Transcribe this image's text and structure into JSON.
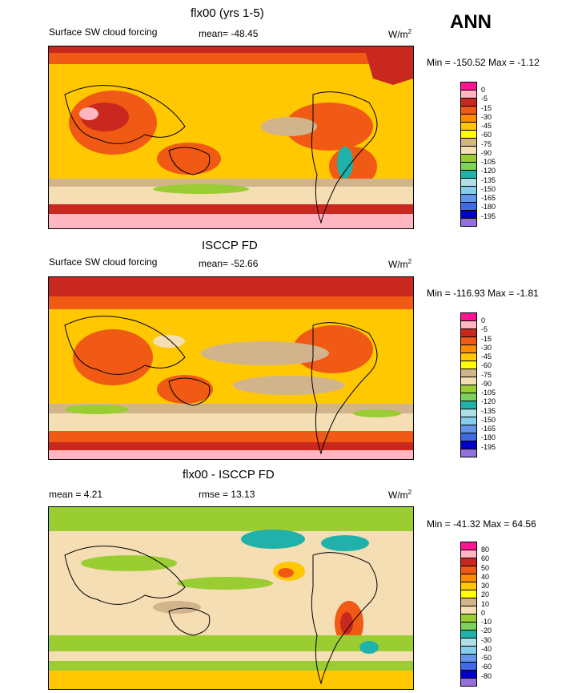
{
  "season": "ANN",
  "panels": [
    {
      "title": "flx00 (yrs 1-5)",
      "left_label": "Surface SW cloud forcing",
      "mid_label": "mean= -48.45",
      "units": "W/m",
      "units_sup": "2",
      "minmax": "Min = -150.52 Max =  -1.12"
    },
    {
      "title": "ISCCP FD",
      "left_label": "Surface SW cloud forcing",
      "mid_label": "mean= -52.66",
      "units": "W/m",
      "units_sup": "2",
      "minmax": "Min = -116.93 Max =  -1.81"
    },
    {
      "title": "flx00 - ISCCP FD",
      "left_label": "mean =   4.21",
      "mid_label": "rmse =  13.13",
      "units": "W/m",
      "units_sup": "2",
      "minmax": "Min = -41.32 Max =  64.56"
    }
  ],
  "colorbars": {
    "abs": {
      "labels": [
        "0",
        "-5",
        "-15",
        "-30",
        "-45",
        "-60",
        "-75",
        "-90",
        "-105",
        "-120",
        "-135",
        "-150",
        "-165",
        "-180",
        "-195"
      ],
      "colors": [
        "#ff1493",
        "#ffb6c1",
        "#c8281e",
        "#f05a14",
        "#ff8c00",
        "#ffc800",
        "#ffff00",
        "#d2b48c",
        "#f5deb3",
        "#9acd32",
        "#7cd25a",
        "#20b2aa",
        "#b0e0e6",
        "#87ceeb",
        "#6495ed",
        "#4169e1",
        "#0000cd",
        "#9370db"
      ]
    },
    "diff": {
      "labels": [
        "80",
        "60",
        "50",
        "40",
        "30",
        "20",
        "10",
        "0",
        "-10",
        "-20",
        "-30",
        "-40",
        "-50",
        "-60",
        "-80"
      ],
      "colors": [
        "#ff1493",
        "#ffb6c1",
        "#c8281e",
        "#f05a14",
        "#ff8c00",
        "#ffc800",
        "#ffff00",
        "#d2b48c",
        "#f5deb3",
        "#9acd32",
        "#7cd25a",
        "#20b2aa",
        "#b0e0e6",
        "#87ceeb",
        "#6495ed",
        "#4169e1",
        "#0000cd",
        "#9370db"
      ]
    }
  },
  "chart_data": [
    {
      "type": "heatmap",
      "title": "flx00 (yrs 1-5)",
      "variable": "Surface SW cloud forcing",
      "units": "W/m2",
      "mean": -48.45,
      "min": -150.52,
      "max": -1.12,
      "levels": [
        0,
        -5,
        -15,
        -30,
        -45,
        -60,
        -75,
        -90,
        -105,
        -120,
        -135,
        -150,
        -165,
        -180,
        -195
      ]
    },
    {
      "type": "heatmap",
      "title": "ISCCP FD",
      "variable": "Surface SW cloud forcing",
      "units": "W/m2",
      "mean": -52.66,
      "min": -116.93,
      "max": -1.81,
      "levels": [
        0,
        -5,
        -15,
        -30,
        -45,
        -60,
        -75,
        -90,
        -105,
        -120,
        -135,
        -150,
        -165,
        -180,
        -195
      ]
    },
    {
      "type": "heatmap",
      "title": "flx00 - ISCCP FD",
      "units": "W/m2",
      "mean": 4.21,
      "rmse": 13.13,
      "min": -41.32,
      "max": 64.56,
      "levels": [
        80,
        60,
        50,
        40,
        30,
        20,
        10,
        0,
        -10,
        -20,
        -30,
        -40,
        -50,
        -60,
        -80
      ]
    }
  ]
}
